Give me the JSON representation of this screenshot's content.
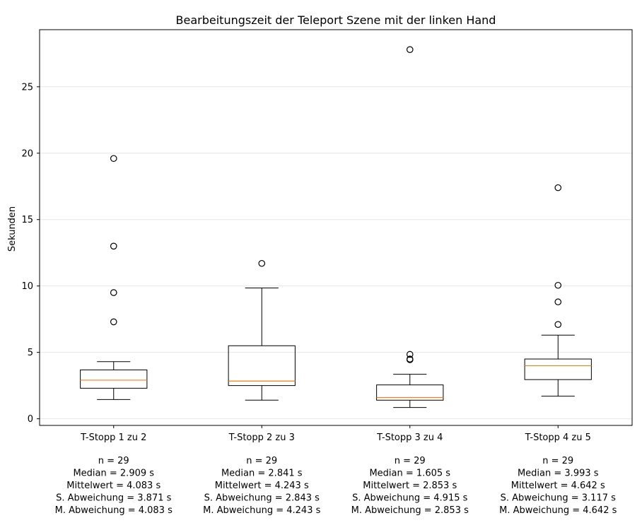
{
  "chart_data": {
    "type": "box",
    "title": "Bearbeitungszeit der Teleport Szene mit der linken Hand",
    "xlabel": "",
    "ylabel": "Sekunden",
    "ylim": [
      -0.5,
      29.3
    ],
    "yticks": [
      0,
      5,
      10,
      15,
      20,
      25
    ],
    "grid": "horizontal",
    "colors": {
      "box": "#000000",
      "median": "#ff7f0e",
      "grid": "#e6e6e6"
    },
    "boxes": [
      {
        "label": "T-Stopp 1 zu 2",
        "whisker_low": 1.45,
        "q1": 2.3,
        "median": 2.909,
        "q3": 3.68,
        "whisker_high": 4.3,
        "outliers": [
          7.3,
          9.5,
          13.0,
          19.6
        ],
        "stats": [
          "n = 29",
          "Median = 2.909 s",
          "Mittelwert = 4.083 s",
          "S. Abweichung = 3.871 s",
          "M. Abweichung = 4.083 s"
        ]
      },
      {
        "label": "T-Stopp 2 zu 3",
        "whisker_low": 1.4,
        "q1": 2.5,
        "median": 2.841,
        "q3": 5.5,
        "whisker_high": 9.85,
        "outliers": [
          11.7
        ],
        "stats": [
          "n = 29",
          "Median = 2.841 s",
          "Mittelwert = 4.243 s",
          "S. Abweichung = 2.843 s",
          "M. Abweichung = 4.243 s"
        ]
      },
      {
        "label": "T-Stopp 3 zu 4",
        "whisker_low": 0.85,
        "q1": 1.4,
        "median": 1.605,
        "q3": 2.55,
        "whisker_high": 3.35,
        "outliers": [
          4.45,
          4.5,
          4.85,
          27.8
        ],
        "stats": [
          "n = 29",
          "Median = 1.605 s",
          "Mittelwert = 2.853 s",
          "S. Abweichung = 4.915 s",
          "M. Abweichung = 2.853 s"
        ]
      },
      {
        "label": "T-Stopp 4 zu 5",
        "whisker_low": 1.7,
        "q1": 2.95,
        "median": 3.993,
        "q3": 4.5,
        "whisker_high": 6.3,
        "outliers": [
          7.1,
          8.8,
          10.05,
          17.4
        ],
        "stats": [
          "n = 29",
          "Median = 3.993 s",
          "Mittelwert = 4.642 s",
          "S. Abweichung = 3.117 s",
          "M. Abweichung = 4.642 s"
        ]
      }
    ]
  }
}
